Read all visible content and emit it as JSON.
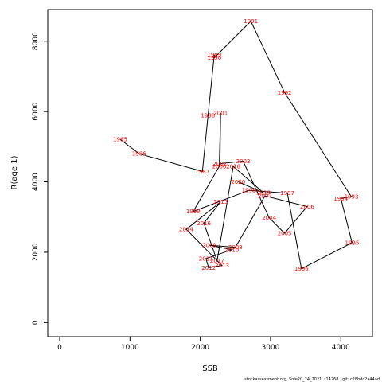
{
  "chart_data": {
    "type": "line",
    "xlabel": "SSB",
    "ylabel": "R(age 1)",
    "xlim": [
      -170,
      4450
    ],
    "ylim": [
      -400,
      8900
    ],
    "xticks": [
      0,
      1000,
      2000,
      3000,
      4000
    ],
    "yticks": [
      0,
      2000,
      4000,
      6000,
      8000
    ],
    "line_color": "#000000",
    "label_color": "#ff0000",
    "points": [
      {
        "year": "1985",
        "x": 860,
        "y": 5210
      },
      {
        "year": "1986",
        "x": 1130,
        "y": 4800
      },
      {
        "year": "1987",
        "x": 2030,
        "y": 4300
      },
      {
        "year": "1988",
        "x": 2110,
        "y": 5890
      },
      {
        "year": "1989",
        "x": 2200,
        "y": 7620
      },
      {
        "year": "1990",
        "x": 2200,
        "y": 7530
      },
      {
        "year": "1991",
        "x": 2720,
        "y": 8570
      },
      {
        "year": "1992",
        "x": 3200,
        "y": 6540
      },
      {
        "year": "1993",
        "x": 4150,
        "y": 3580
      },
      {
        "year": "1994",
        "x": 4000,
        "y": 3530
      },
      {
        "year": "1995",
        "x": 4160,
        "y": 2270
      },
      {
        "year": "1996",
        "x": 3440,
        "y": 1530
      },
      {
        "year": "1997",
        "x": 3240,
        "y": 3680
      },
      {
        "year": "1998",
        "x": 2690,
        "y": 3760
      },
      {
        "year": "1999",
        "x": 1900,
        "y": 3160
      },
      {
        "year": "2000",
        "x": 2270,
        "y": 4440
      },
      {
        "year": "2001",
        "x": 2290,
        "y": 5960
      },
      {
        "year": "2002",
        "x": 2280,
        "y": 4520
      },
      {
        "year": "2003",
        "x": 2610,
        "y": 4590
      },
      {
        "year": "2004",
        "x": 2980,
        "y": 2980
      },
      {
        "year": "2005",
        "x": 3200,
        "y": 2540
      },
      {
        "year": "2006",
        "x": 3520,
        "y": 3300
      },
      {
        "year": "2007",
        "x": 2920,
        "y": 3600
      },
      {
        "year": "2008",
        "x": 2500,
        "y": 2140
      },
      {
        "year": "2009",
        "x": 2130,
        "y": 2200
      },
      {
        "year": "2010",
        "x": 2450,
        "y": 2070
      },
      {
        "year": "2011",
        "x": 2080,
        "y": 1820
      },
      {
        "year": "2012",
        "x": 2120,
        "y": 1560
      },
      {
        "year": "2013",
        "x": 2310,
        "y": 1620
      },
      {
        "year": "2014",
        "x": 1800,
        "y": 2650
      },
      {
        "year": "2015",
        "x": 2290,
        "y": 3430
      },
      {
        "year": "2016",
        "x": 2050,
        "y": 2830
      },
      {
        "year": "2017",
        "x": 2240,
        "y": 1760
      },
      {
        "year": "2018",
        "x": 2470,
        "y": 4440
      },
      {
        "year": "2019",
        "x": 2900,
        "y": 3690
      },
      {
        "year": "2020",
        "x": 2540,
        "y": 4000
      }
    ]
  },
  "footer_text": "stockassessment.org,  Sole20_24_2021, r14268 ,  git:  c28bdc2a44ad"
}
